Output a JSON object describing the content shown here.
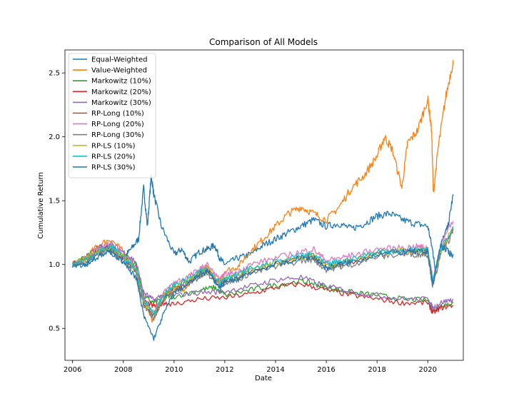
{
  "chart_data": {
    "type": "line",
    "title": "Comparison of All Models",
    "xlabel": "Date",
    "ylabel": "Cumulative Return",
    "xlim": [
      2005.7,
      2021.4
    ],
    "ylim": [
      0.25,
      2.68
    ],
    "xticks": [
      2006,
      2008,
      2010,
      2012,
      2014,
      2016,
      2018,
      2020
    ],
    "yticks": [
      0.5,
      1.0,
      1.5,
      2.0,
      2.5
    ],
    "ytick_labels": [
      "0.5",
      "1.0",
      "1.5",
      "2.0",
      "2.5"
    ],
    "grid": false,
    "legend_position": "top-left",
    "series": [
      {
        "name": "Equal-Weighted",
        "color": "#1f77b4",
        "x": [
          2006.0,
          2006.5,
          2007.0,
          2007.5,
          2008.0,
          2008.3,
          2008.6,
          2008.8,
          2008.95,
          2009.1,
          2009.2,
          2009.5,
          2010.0,
          2010.3,
          2010.6,
          2011.0,
          2011.3,
          2011.6,
          2011.8,
          2012.0,
          2012.5,
          2013.0,
          2013.5,
          2014.0,
          2014.5,
          2015.0,
          2015.5,
          2016.0,
          2016.5,
          2017.0,
          2017.5,
          2018.0,
          2018.5,
          2019.0,
          2019.5,
          2020.0,
          2020.2,
          2020.3,
          2020.5,
          2020.8,
          2021.0
        ],
        "y": [
          1.0,
          1.0,
          1.08,
          1.1,
          1.05,
          1.12,
          1.2,
          1.6,
          1.3,
          1.7,
          1.55,
          1.3,
          1.08,
          1.12,
          1.02,
          1.1,
          1.12,
          1.15,
          1.05,
          1.0,
          1.05,
          1.08,
          1.15,
          1.2,
          1.25,
          1.3,
          1.35,
          1.3,
          1.32,
          1.28,
          1.32,
          1.38,
          1.4,
          1.35,
          1.32,
          1.3,
          1.1,
          0.95,
          1.15,
          1.3,
          1.55
        ]
      },
      {
        "name": "Value-Weighted",
        "color": "#ff7f0e",
        "x": [
          2006.0,
          2006.5,
          2007.0,
          2007.5,
          2008.0,
          2008.5,
          2008.9,
          2009.15,
          2009.5,
          2010.0,
          2010.3,
          2010.6,
          2011.0,
          2011.3,
          2011.7,
          2012.0,
          2012.5,
          2013.0,
          2013.5,
          2014.0,
          2014.5,
          2015.0,
          2015.5,
          2016.0,
          2016.5,
          2017.0,
          2017.5,
          2018.0,
          2018.3,
          2018.6,
          2018.98,
          2019.2,
          2019.6,
          2020.0,
          2020.15,
          2020.22,
          2020.4,
          2020.7,
          2021.0
        ],
        "y": [
          1.0,
          1.05,
          1.15,
          1.2,
          1.1,
          0.95,
          0.7,
          0.55,
          0.7,
          0.82,
          0.8,
          0.85,
          0.95,
          0.98,
          0.85,
          0.95,
          0.98,
          1.1,
          1.2,
          1.3,
          1.4,
          1.45,
          1.4,
          1.35,
          1.45,
          1.6,
          1.7,
          1.85,
          2.0,
          1.9,
          1.6,
          1.95,
          2.05,
          2.3,
          2.05,
          1.55,
          1.9,
          2.3,
          2.6
        ]
      },
      {
        "name": "Markowitz (10%)",
        "color": "#2ca02c",
        "x": [
          2006.0,
          2006.5,
          2007.0,
          2007.5,
          2008.0,
          2008.5,
          2008.8,
          2009.2,
          2009.6,
          2010.0,
          2011.0,
          2011.6,
          2012.0,
          2013.0,
          2014.0,
          2015.0,
          2015.5,
          2016.0,
          2016.5,
          2017.0,
          2018.0,
          2019.0,
          2020.0,
          2020.2,
          2020.5,
          2021.0
        ],
        "y": [
          1.0,
          1.05,
          1.12,
          1.15,
          1.08,
          1.0,
          0.75,
          0.7,
          0.75,
          0.75,
          0.8,
          0.82,
          0.76,
          0.8,
          0.84,
          0.87,
          0.85,
          0.82,
          0.8,
          0.78,
          0.76,
          0.73,
          0.72,
          0.64,
          0.68,
          0.7
        ]
      },
      {
        "name": "Markowitz (20%)",
        "color": "#d62728",
        "x": [
          2006.0,
          2006.5,
          2007.0,
          2007.5,
          2008.0,
          2008.5,
          2008.8,
          2009.2,
          2009.6,
          2010.0,
          2011.0,
          2012.0,
          2013.0,
          2014.0,
          2015.0,
          2016.0,
          2017.0,
          2018.0,
          2019.0,
          2020.0,
          2020.2,
          2020.5,
          2021.0
        ],
        "y": [
          1.0,
          1.04,
          1.1,
          1.12,
          1.05,
          0.98,
          0.72,
          0.67,
          0.7,
          0.69,
          0.73,
          0.74,
          0.77,
          0.82,
          0.85,
          0.8,
          0.76,
          0.73,
          0.7,
          0.7,
          0.62,
          0.66,
          0.68
        ]
      },
      {
        "name": "Markowitz (30%)",
        "color": "#9467bd",
        "x": [
          2006.0,
          2006.5,
          2007.0,
          2007.5,
          2008.0,
          2008.5,
          2008.8,
          2009.2,
          2009.6,
          2010.0,
          2011.0,
          2012.0,
          2013.0,
          2014.0,
          2015.0,
          2016.0,
          2017.0,
          2018.0,
          2019.0,
          2020.0,
          2020.2,
          2020.5,
          2021.0
        ],
        "y": [
          1.0,
          1.05,
          1.13,
          1.16,
          1.1,
          1.02,
          0.78,
          0.72,
          0.77,
          0.76,
          0.78,
          0.79,
          0.83,
          0.88,
          0.9,
          0.83,
          0.79,
          0.76,
          0.73,
          0.73,
          0.66,
          0.7,
          0.73
        ]
      },
      {
        "name": "RP-Long (10%)",
        "color": "#8c564b",
        "x": [
          2006.0,
          2006.5,
          2007.0,
          2007.5,
          2008.0,
          2008.5,
          2008.8,
          2009.2,
          2009.6,
          2010.0,
          2010.5,
          2011.0,
          2011.3,
          2011.8,
          2012.0,
          2012.5,
          2013.0,
          2014.0,
          2015.0,
          2015.5,
          2016.0,
          2016.5,
          2017.0,
          2018.0,
          2019.0,
          2019.6,
          2020.0,
          2020.2,
          2020.5,
          2021.0
        ],
        "y": [
          1.0,
          1.04,
          1.1,
          1.13,
          1.05,
          0.95,
          0.7,
          0.6,
          0.75,
          0.82,
          0.86,
          0.92,
          0.96,
          0.85,
          0.88,
          0.9,
          0.95,
          1.0,
          1.05,
          1.06,
          0.98,
          1.0,
          1.02,
          1.08,
          1.1,
          1.1,
          1.1,
          0.85,
          1.1,
          1.28
        ]
      },
      {
        "name": "RP-Long (20%)",
        "color": "#e377c2",
        "x": [
          2006.0,
          2006.5,
          2007.0,
          2007.5,
          2008.0,
          2008.5,
          2008.8,
          2009.2,
          2009.6,
          2010.0,
          2010.5,
          2011.0,
          2011.3,
          2011.8,
          2012.0,
          2012.5,
          2013.0,
          2014.0,
          2015.0,
          2015.5,
          2016.0,
          2016.5,
          2017.0,
          2018.0,
          2019.0,
          2019.6,
          2020.0,
          2020.2,
          2020.5,
          2021.0
        ],
        "y": [
          1.0,
          1.05,
          1.12,
          1.16,
          1.08,
          0.98,
          0.73,
          0.63,
          0.78,
          0.86,
          0.9,
          0.96,
          1.0,
          0.88,
          0.92,
          0.94,
          1.0,
          1.05,
          1.1,
          1.12,
          1.03,
          1.05,
          1.07,
          1.12,
          1.13,
          1.14,
          1.13,
          0.88,
          1.15,
          1.34
        ]
      },
      {
        "name": "RP-Long (30%)",
        "color": "#7f7f7f",
        "x": [
          2006.0,
          2006.5,
          2007.0,
          2007.5,
          2008.0,
          2008.5,
          2008.8,
          2009.2,
          2009.6,
          2010.0,
          2010.5,
          2011.0,
          2011.3,
          2011.8,
          2012.0,
          2012.5,
          2013.0,
          2014.0,
          2015.0,
          2015.5,
          2016.0,
          2016.5,
          2017.0,
          2018.0,
          2019.0,
          2019.6,
          2020.0,
          2020.2,
          2020.5,
          2021.0
        ],
        "y": [
          1.0,
          1.03,
          1.09,
          1.12,
          1.03,
          0.93,
          0.68,
          0.58,
          0.72,
          0.8,
          0.84,
          0.9,
          0.93,
          0.83,
          0.86,
          0.88,
          0.93,
          0.98,
          1.03,
          1.04,
          0.96,
          0.98,
          1.0,
          1.06,
          1.08,
          1.08,
          1.08,
          0.82,
          1.08,
          1.25
        ]
      },
      {
        "name": "RP-LS (10%)",
        "color": "#bcbd22",
        "x": [
          2006.0,
          2006.5,
          2007.0,
          2007.5,
          2008.0,
          2008.5,
          2008.8,
          2009.2,
          2009.6,
          2010.0,
          2010.5,
          2011.0,
          2011.3,
          2011.8,
          2012.0,
          2012.5,
          2013.0,
          2014.0,
          2015.0,
          2015.5,
          2016.0,
          2016.5,
          2017.0,
          2018.0,
          2019.0,
          2019.6,
          2020.0,
          2020.2,
          2020.5,
          2021.0
        ],
        "y": [
          1.0,
          1.04,
          1.11,
          1.14,
          1.06,
          0.96,
          0.71,
          0.61,
          0.76,
          0.83,
          0.87,
          0.93,
          0.97,
          0.86,
          0.89,
          0.91,
          0.96,
          1.01,
          1.06,
          1.07,
          0.99,
          1.01,
          1.03,
          1.09,
          1.11,
          1.11,
          1.11,
          0.86,
          1.11,
          1.29
        ]
      },
      {
        "name": "RP-LS (20%)",
        "color": "#17becf",
        "x": [
          2006.0,
          2006.5,
          2007.0,
          2007.5,
          2008.0,
          2008.5,
          2008.8,
          2009.2,
          2009.6,
          2010.0,
          2010.5,
          2011.0,
          2011.3,
          2011.8,
          2012.0,
          2012.5,
          2013.0,
          2014.0,
          2015.0,
          2015.5,
          2016.0,
          2016.5,
          2017.0,
          2018.0,
          2019.0,
          2019.6,
          2020.0,
          2020.2,
          2020.5,
          2021.0
        ],
        "y": [
          1.0,
          1.04,
          1.1,
          1.14,
          1.06,
          0.96,
          0.72,
          0.62,
          0.76,
          0.84,
          0.88,
          0.94,
          0.97,
          0.86,
          0.9,
          0.92,
          0.97,
          1.02,
          1.07,
          1.08,
          1.0,
          1.02,
          1.04,
          1.1,
          1.11,
          1.12,
          1.11,
          0.87,
          1.12,
          1.3
        ]
      },
      {
        "name": "RP-LS (30%)",
        "color": "#1f77b4",
        "x": [
          2006.0,
          2006.5,
          2007.0,
          2007.5,
          2008.0,
          2008.5,
          2008.8,
          2009.2,
          2009.6,
          2010.0,
          2010.5,
          2011.0,
          2011.3,
          2011.8,
          2012.0,
          2012.5,
          2013.0,
          2014.0,
          2015.0,
          2015.5,
          2016.0,
          2016.5,
          2017.0,
          2018.0,
          2019.0,
          2019.6,
          2020.0,
          2020.2,
          2020.5,
          2020.8,
          2021.0
        ],
        "y": [
          1.0,
          1.0,
          1.06,
          1.1,
          1.02,
          0.9,
          0.6,
          0.42,
          0.62,
          0.78,
          0.84,
          0.92,
          0.95,
          0.82,
          0.86,
          0.89,
          0.94,
          1.0,
          1.05,
          1.06,
          0.97,
          1.0,
          1.02,
          1.08,
          1.1,
          1.1,
          1.1,
          0.84,
          1.15,
          1.1,
          1.07
        ]
      }
    ]
  }
}
